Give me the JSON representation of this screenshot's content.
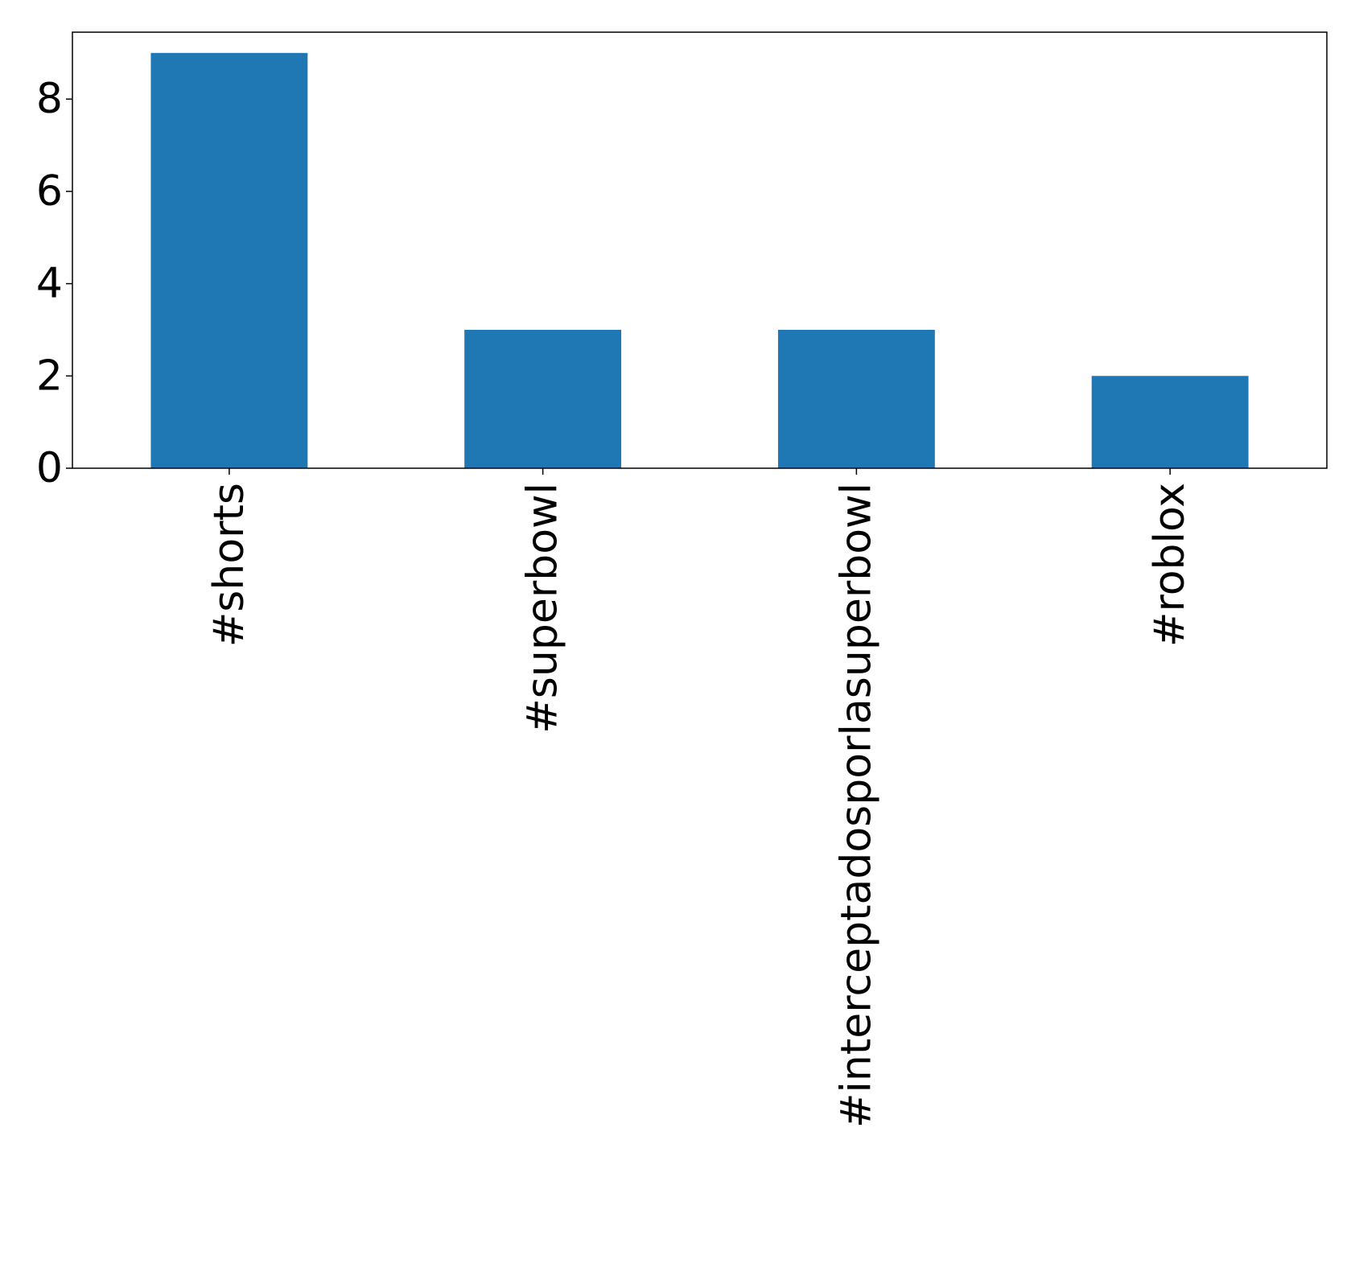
{
  "chart_data": {
    "type": "bar",
    "title": "",
    "xlabel": "",
    "ylabel": "",
    "categories": [
      "#shorts",
      "#superbowl",
      "#interceptadosporlasuperbowl",
      "#roblox"
    ],
    "values": [
      9,
      3,
      3,
      2
    ],
    "ylim": [
      0,
      9.45
    ],
    "yticks": [
      0,
      2,
      4,
      6,
      8
    ],
    "ytick_labels": [
      "0",
      "2",
      "4",
      "6",
      "8"
    ],
    "grid": false,
    "legend": "none",
    "bar_color": "#1f77b4",
    "axis_color": "#000000",
    "x_tick_label_rotation": "vertical"
  }
}
